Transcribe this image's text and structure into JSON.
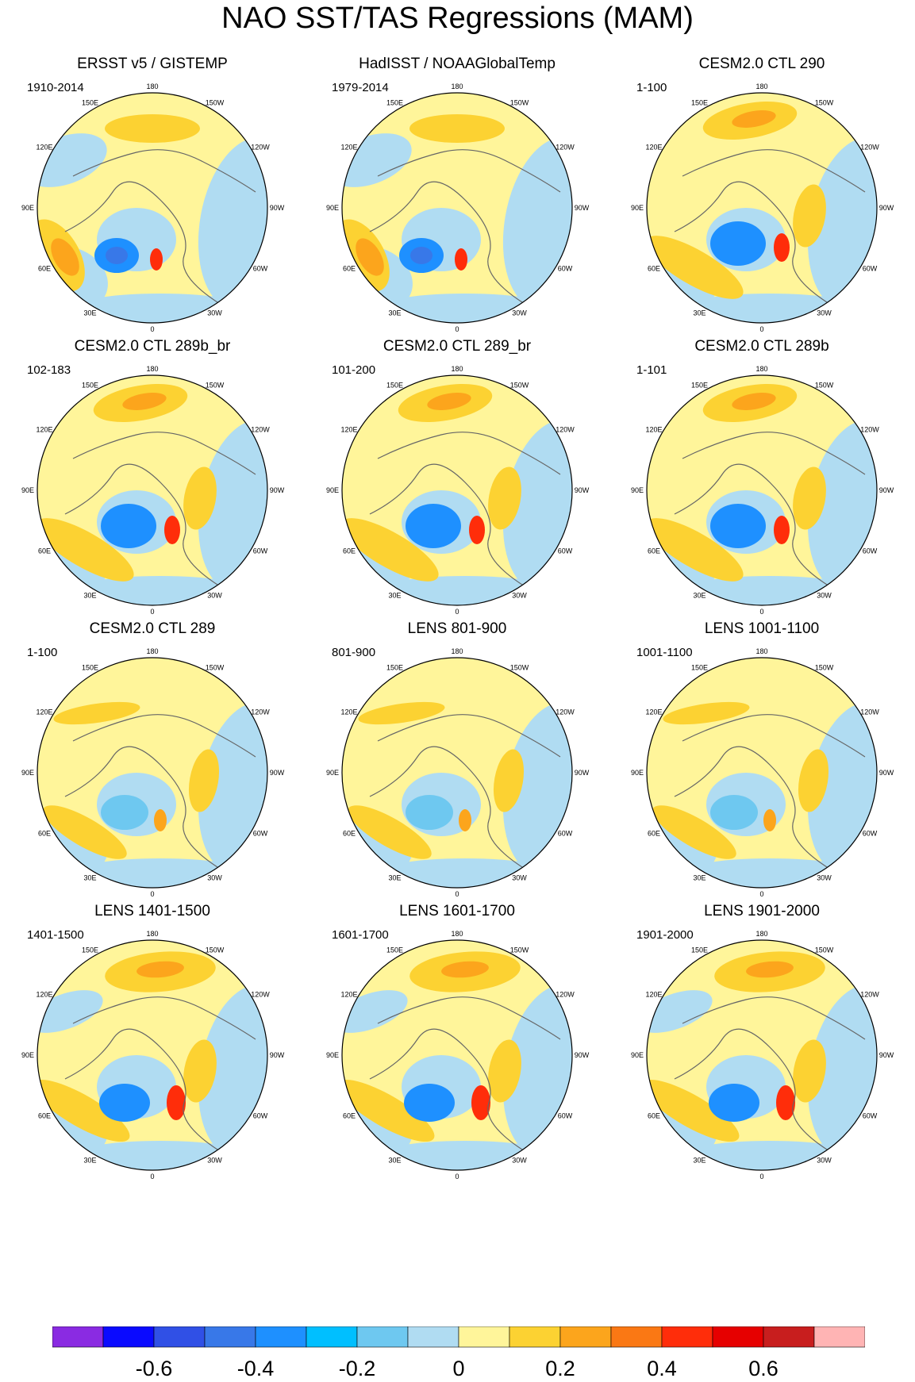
{
  "title": "NAO SST/TAS Regressions (MAM)",
  "panels": [
    {
      "title": "ERSST v5 / GISTEMP",
      "years": "1910-2014",
      "style": "obs"
    },
    {
      "title": "HadISST / NOAAGlobalTemp",
      "years": "1979-2014",
      "style": "obs2"
    },
    {
      "title": "CESM2.0 CTL 290",
      "years": "1-100",
      "style": "model"
    },
    {
      "title": "CESM2.0 CTL 289b_br",
      "years": "102-183",
      "style": "model"
    },
    {
      "title": "CESM2.0 CTL 289_br",
      "years": "101-200",
      "style": "model"
    },
    {
      "title": "CESM2.0 CTL 289b",
      "years": "1-101",
      "style": "model"
    },
    {
      "title": "CESM2.0 CTL 289",
      "years": "1-100",
      "style": "weak"
    },
    {
      "title": "LENS 801-900",
      "years": "801-900",
      "style": "weak"
    },
    {
      "title": "LENS 1001-1100",
      "years": "1001-1100",
      "style": "weak"
    },
    {
      "title": "LENS 1401-1500",
      "years": "1401-1500",
      "style": "strong"
    },
    {
      "title": "LENS 1601-1700",
      "years": "1601-1700",
      "style": "strong"
    },
    {
      "title": "LENS 1901-2000",
      "years": "1901-2000",
      "style": "strong"
    }
  ],
  "longitude_labels": [
    "180",
    "150E",
    "120E",
    "90E",
    "60E",
    "30E",
    "0",
    "30W",
    "60W",
    "90W",
    "120W",
    "150W"
  ],
  "colorbar": {
    "colors": [
      "#8a2be2",
      "#0a0aff",
      "#3050e6",
      "#3878e8",
      "#1e90ff",
      "#00bfff",
      "#6ec8f0",
      "#b0dcf2",
      "#fff59a",
      "#fcd232",
      "#fca51c",
      "#fa7814",
      "#ff2d0a",
      "#e60000",
      "#c81e1e",
      "#ffb4b4"
    ],
    "tick_values": [
      -0.6,
      -0.4,
      -0.2,
      0,
      0.2,
      0.4,
      0.6
    ],
    "tick_labels": [
      "-0.6",
      "-0.4",
      "-0.2",
      "0",
      "0.2",
      "0.4",
      "0.6"
    ]
  }
}
